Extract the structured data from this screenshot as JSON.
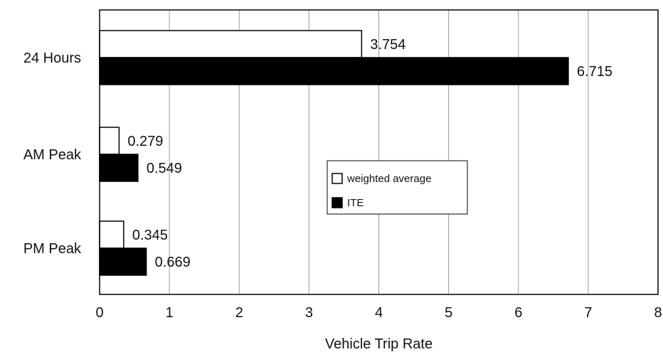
{
  "chart_data": {
    "type": "bar",
    "orientation": "horizontal",
    "categories": [
      "24 Hours",
      "AM Peak",
      "PM Peak"
    ],
    "series": [
      {
        "name": "weighted average",
        "values": [
          3.754,
          0.279,
          0.345
        ],
        "labels": [
          "3.754",
          "0.279",
          "0.345"
        ],
        "fill": "#ffffff"
      },
      {
        "name": "ITE",
        "values": [
          6.715,
          0.549,
          0.669
        ],
        "labels": [
          "6.715",
          "0.549",
          "0.669"
        ],
        "fill": "#000000"
      }
    ],
    "xlabel": "Vehicle Trip Rate",
    "ylabel": "",
    "xlim": [
      0,
      8
    ],
    "xticks": [
      "0",
      "1",
      "2",
      "3",
      "4",
      "5",
      "6",
      "7",
      "8"
    ],
    "grid": "vertical",
    "legend_position": "center-right"
  }
}
